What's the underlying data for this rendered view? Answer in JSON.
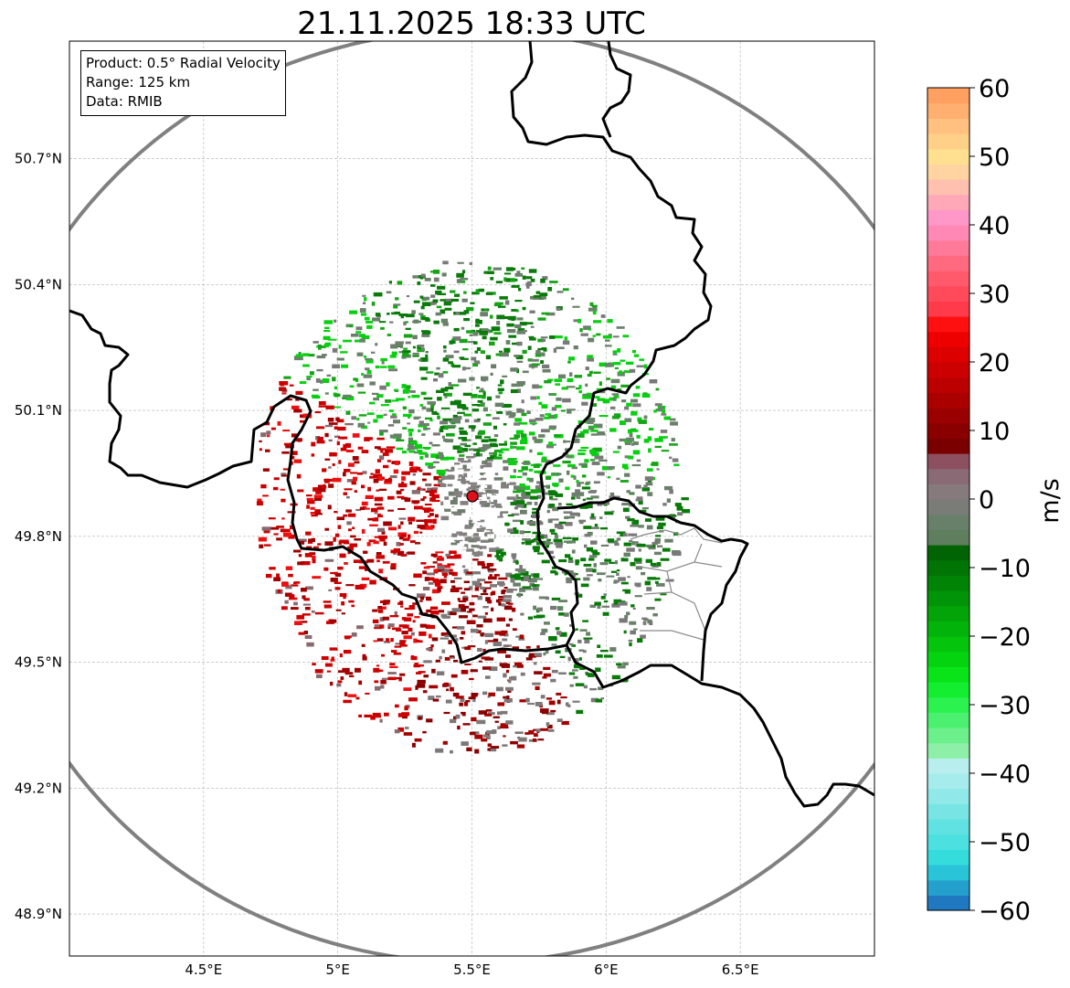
{
  "title": "21.11.2025 18:33 UTC",
  "info": {
    "product": "Product: 0.5° Radial Velocity",
    "range": "Range: 125 km",
    "source": "Data: RMIB"
  },
  "map": {
    "lon_range": [
      4.0,
      7.0
    ],
    "lat_range": [
      48.8,
      50.98
    ],
    "radar_site": {
      "lon": 5.505,
      "lat": 49.914
    },
    "range_km": 125,
    "x_ticks": [
      "4.5°E",
      "5°E",
      "5.5°E",
      "6°E",
      "6.5°E"
    ],
    "x_tick_values": [
      4.5,
      5.0,
      5.5,
      6.0,
      6.5
    ],
    "y_ticks": [
      "48.9°N",
      "49.2°N",
      "49.5°N",
      "49.8°N",
      "50.1°N",
      "50.4°N",
      "50.7°N"
    ],
    "y_tick_values": [
      48.9,
      49.2,
      49.5,
      49.8,
      50.1,
      50.4,
      50.7
    ]
  },
  "colorbar": {
    "label": "m/s",
    "ticks": [
      "60",
      "50",
      "40",
      "30",
      "20",
      "10",
      "0",
      "−10",
      "−20",
      "−30",
      "−40",
      "−50",
      "−60"
    ],
    "tick_values": [
      60,
      50,
      40,
      30,
      20,
      10,
      0,
      -10,
      -20,
      -30,
      -40,
      -50,
      -60
    ],
    "vmin": -60,
    "vmax": 60,
    "palette": [
      "#2079c0",
      "#24a0cc",
      "#2ac4d8",
      "#34dcdc",
      "#4ce0e0",
      "#60e2e2",
      "#78e4e4",
      "#90e8e8",
      "#a6ecec",
      "#b8eeee",
      "#8ef0a8",
      "#6cf08c",
      "#4cf070",
      "#2cf250",
      "#14ee30",
      "#08e418",
      "#04d410",
      "#04c40c",
      "#02b40a",
      "#02a408",
      "#029408",
      "#018406",
      "#017406",
      "#016404",
      "#5e7e5e",
      "#68806a",
      "#7a7c78",
      "#867a7c",
      "#8a6a74",
      "#8c5060",
      "#7a0000",
      "#8a0000",
      "#9a0000",
      "#aa0000",
      "#bc0000",
      "#cc0000",
      "#dc0000",
      "#ee0000",
      "#ff1010",
      "#ff3a4a",
      "#ff4a5c",
      "#ff5a6c",
      "#ff6a80",
      "#ff7a98",
      "#ff88b4",
      "#ff98c8",
      "#ffa8b8",
      "#ffc0b0",
      "#ffd4a0",
      "#ffe090",
      "#ffd088",
      "#ffc080",
      "#ffb070",
      "#ffa060"
    ]
  }
}
